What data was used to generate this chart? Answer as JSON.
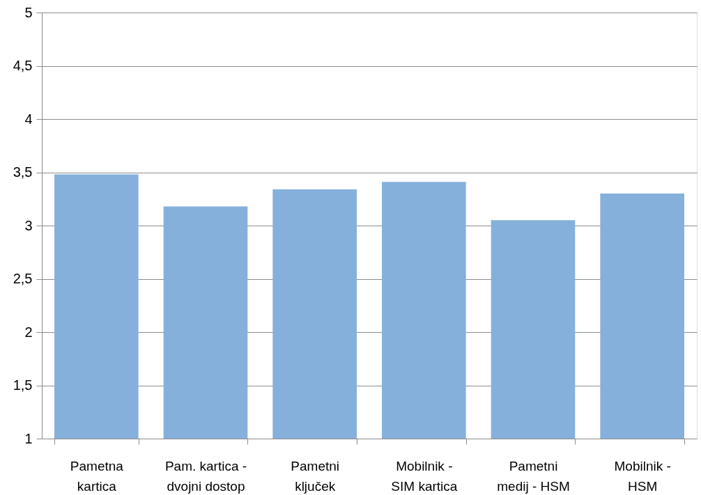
{
  "chart_data": {
    "type": "bar",
    "categories": [
      "Pametna kartica",
      "Pam. kartica - dvojni dostop",
      "Pametni ključek",
      "Mobilnik - SIM kartica",
      "Pametni medij - HSM",
      "Mobilnik - HSM"
    ],
    "values": [
      3.48,
      3.18,
      3.34,
      3.41,
      3.05,
      3.3
    ],
    "color": "#85b0dc",
    "ylim": [
      1,
      5
    ],
    "yticks": [
      1,
      {
        "value": 1.5,
        "label": "1,5"
      },
      2,
      {
        "value": 2.5,
        "label": "2,5"
      },
      3,
      {
        "value": 3.5,
        "label": "3,5"
      },
      4,
      {
        "value": 4.5,
        "label": "4,5"
      },
      5
    ],
    "grid": "y"
  }
}
